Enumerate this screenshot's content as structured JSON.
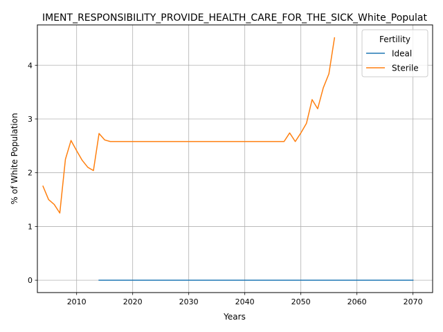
{
  "chart_data": {
    "type": "line",
    "title": "IMENT_RESPONSIBILITY_PROVIDE_HEALTH_CARE_FOR_THE_SICK_White_Populat",
    "xlabel": "Years",
    "ylabel": "% of White Population",
    "xlim": [
      2003,
      2073.5
    ],
    "ylim": [
      -0.23,
      4.75
    ],
    "xticks": [
      2010,
      2020,
      2030,
      2040,
      2050,
      2060,
      2070
    ],
    "yticks": [
      0,
      1,
      2,
      3,
      4
    ],
    "grid": true,
    "legend": {
      "title": "Fertility",
      "placement": "top-right"
    },
    "series": [
      {
        "name": "Ideal",
        "color": "#1f77b4",
        "x": [
          2014,
          2020,
          2030,
          2040,
          2050,
          2060,
          2070
        ],
        "y": [
          0,
          0,
          0,
          0,
          0,
          0,
          0
        ]
      },
      {
        "name": "Sterile",
        "color": "#ff7f0e",
        "x": [
          2004,
          2005,
          2006,
          2007,
          2008,
          2009,
          2010,
          2011,
          2012,
          2013,
          2014,
          2015,
          2016,
          2017,
          2020,
          2025,
          2030,
          2035,
          2040,
          2045,
          2047,
          2048,
          2049,
          2050,
          2051,
          2052,
          2053,
          2054,
          2055,
          2056
        ],
        "y": [
          1.75,
          1.5,
          1.41,
          1.25,
          2.25,
          2.6,
          2.41,
          2.23,
          2.1,
          2.04,
          2.73,
          2.61,
          2.58,
          2.58,
          2.58,
          2.58,
          2.58,
          2.58,
          2.58,
          2.58,
          2.58,
          2.74,
          2.58,
          2.74,
          2.92,
          3.36,
          3.19,
          3.58,
          3.84,
          4.51
        ]
      }
    ]
  }
}
